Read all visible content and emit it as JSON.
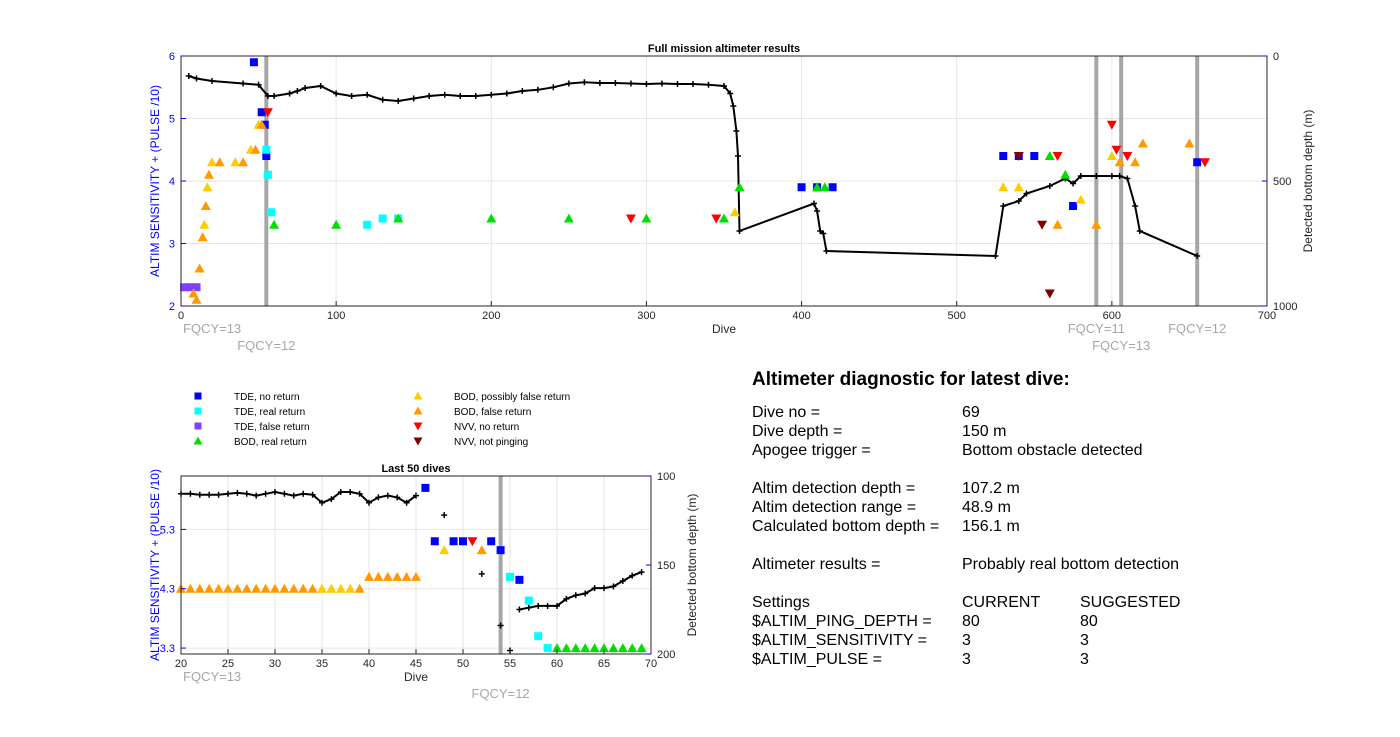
{
  "chart_data": [
    {
      "type": "scatter",
      "title": "Full mission altimeter results",
      "xlabel": "Dive",
      "ylabel_left": "ALTIM SENSITIVITY + (PULSE /10)",
      "ylabel_right": "Detected bottom depth (m)",
      "xlim": [
        0,
        700
      ],
      "ylim_left": [
        2,
        6
      ],
      "ylim_right_reversed": [
        0,
        1000
      ],
      "xticks": [
        "0",
        "100",
        "200",
        "300",
        "400",
        "500",
        "600",
        "700"
      ],
      "yticks_left": [
        "2",
        "3",
        "4",
        "5",
        "6"
      ],
      "yticks_right": [
        "0",
        "500",
        "1000"
      ],
      "grid": true,
      "freq_markers": [
        {
          "dive": 55,
          "label": "FQCY=12"
        },
        {
          "dive": 590,
          "label": "FQCY=11"
        },
        {
          "dive": 606,
          "label": "FQCY=13"
        },
        {
          "dive": 655,
          "label": "FQCY=12"
        }
      ],
      "freq_start_label": "FQCY=13",
      "bottom_depth_series": [
        [
          5,
          80
        ],
        [
          10,
          90
        ],
        [
          20,
          100
        ],
        [
          40,
          110
        ],
        [
          50,
          115
        ],
        [
          56,
          160
        ],
        [
          60,
          160
        ],
        [
          70,
          150
        ],
        [
          75,
          140
        ],
        [
          80,
          128
        ],
        [
          90,
          120
        ],
        [
          100,
          150
        ],
        [
          110,
          160
        ],
        [
          120,
          155
        ],
        [
          130,
          175
        ],
        [
          140,
          180
        ],
        [
          150,
          170
        ],
        [
          160,
          160
        ],
        [
          170,
          155
        ],
        [
          180,
          160
        ],
        [
          190,
          160
        ],
        [
          200,
          155
        ],
        [
          210,
          150
        ],
        [
          220,
          140
        ],
        [
          230,
          135
        ],
        [
          240,
          125
        ],
        [
          250,
          110
        ],
        [
          260,
          105
        ],
        [
          270,
          108
        ],
        [
          280,
          108
        ],
        [
          290,
          110
        ],
        [
          300,
          112
        ],
        [
          310,
          110
        ],
        [
          320,
          112
        ],
        [
          330,
          112
        ],
        [
          340,
          115
        ],
        [
          350,
          120
        ],
        [
          354,
          150
        ],
        [
          356,
          200
        ],
        [
          358,
          300
        ],
        [
          359,
          400
        ],
        [
          360,
          700
        ],
        [
          408,
          590
        ],
        [
          410,
          620
        ],
        [
          412,
          700
        ],
        [
          414,
          710
        ],
        [
          416,
          780
        ],
        [
          525,
          800
        ],
        [
          530,
          600
        ],
        [
          540,
          580
        ],
        [
          545,
          550
        ],
        [
          560,
          520
        ],
        [
          570,
          490
        ],
        [
          575,
          510
        ],
        [
          580,
          480
        ],
        [
          590,
          480
        ],
        [
          600,
          480
        ],
        [
          605,
          480
        ],
        [
          610,
          490
        ],
        [
          615,
          600
        ],
        [
          618,
          700
        ],
        [
          655,
          800
        ]
      ],
      "tde_no_return": [
        [
          47,
          5.9
        ],
        [
          52,
          5.1
        ],
        [
          54,
          4.9
        ],
        [
          55,
          4.4
        ],
        [
          400,
          3.9
        ],
        [
          410,
          3.9
        ],
        [
          420,
          3.9
        ],
        [
          530,
          4.4
        ],
        [
          540,
          4.4
        ],
        [
          550,
          4.4
        ],
        [
          575,
          3.6
        ],
        [
          655,
          4.3
        ]
      ],
      "tde_real_return": [
        [
          55,
          4.5
        ],
        [
          56,
          4.1
        ],
        [
          58,
          3.5
        ],
        [
          120,
          3.3
        ],
        [
          130,
          3.4
        ],
        [
          140,
          3.4
        ]
      ],
      "tde_false_return": [
        [
          2,
          2.3
        ],
        [
          6,
          2.3
        ],
        [
          10,
          2.3
        ]
      ],
      "bod_real_return": [
        [
          60,
          3.3
        ],
        [
          100,
          3.3
        ],
        [
          140,
          3.4
        ],
        [
          200,
          3.4
        ],
        [
          250,
          3.4
        ],
        [
          300,
          3.4
        ],
        [
          350,
          3.4
        ],
        [
          360,
          3.9
        ],
        [
          410,
          3.9
        ],
        [
          415,
          3.9
        ],
        [
          560,
          4.4
        ],
        [
          570,
          4.1
        ]
      ],
      "bod_possibly_false_return": [
        [
          12,
          2.6
        ],
        [
          15,
          3.3
        ],
        [
          17,
          3.9
        ],
        [
          20,
          4.3
        ],
        [
          35,
          4.3
        ],
        [
          45,
          4.5
        ],
        [
          50,
          4.9
        ],
        [
          357,
          3.5
        ],
        [
          530,
          3.9
        ],
        [
          540,
          3.9
        ],
        [
          580,
          3.7
        ],
        [
          600,
          4.4
        ]
      ],
      "bod_false_return": [
        [
          8,
          2.2
        ],
        [
          10,
          2.1
        ],
        [
          12,
          2.6
        ],
        [
          14,
          3.1
        ],
        [
          16,
          3.6
        ],
        [
          18,
          4.1
        ],
        [
          25,
          4.3
        ],
        [
          40,
          4.3
        ],
        [
          48,
          4.5
        ],
        [
          52,
          4.9
        ],
        [
          565,
          3.3
        ],
        [
          590,
          3.3
        ],
        [
          605,
          4.3
        ],
        [
          615,
          4.3
        ],
        [
          620,
          4.6
        ],
        [
          650,
          4.6
        ]
      ],
      "nvv_no_return": [
        [
          56,
          5.1
        ],
        [
          290,
          3.4
        ],
        [
          345,
          3.4
        ],
        [
          565,
          4.4
        ],
        [
          600,
          4.9
        ],
        [
          603,
          4.5
        ],
        [
          610,
          4.4
        ],
        [
          660,
          4.3
        ]
      ],
      "nvv_not_pinging": [
        [
          540,
          4.4
        ],
        [
          555,
          3.3
        ],
        [
          560,
          2.2
        ]
      ]
    },
    {
      "type": "scatter",
      "title": "Last 50 dives",
      "xlabel": "Dive",
      "ylabel_left": "ALTIM SENSITIVITY + (PULSE /10)",
      "ylabel_right": "Detected bottom depth (m)",
      "xlim": [
        20,
        70
      ],
      "ylim_left": [
        3.2,
        6.2
      ],
      "ylim_right_reversed": [
        100,
        200
      ],
      "xticks": [
        "20",
        "25",
        "30",
        "35",
        "40",
        "45",
        "50",
        "55",
        "60",
        "65",
        "70"
      ],
      "yticks_left": [
        "3.3",
        "4.3",
        "5.3"
      ],
      "yticks_right": [
        "100",
        "150",
        "200"
      ],
      "grid": true,
      "freq_markers": [
        {
          "dive": 54,
          "label": "FQCY=12"
        }
      ],
      "freq_start_label": "FQCY=13",
      "bottom_depth_series": [
        [
          20,
          110
        ],
        [
          21,
          110
        ],
        [
          22,
          110.5
        ],
        [
          23,
          110.5
        ],
        [
          24,
          110.5
        ],
        [
          25,
          110
        ],
        [
          26,
          109.5
        ],
        [
          27,
          110
        ],
        [
          28,
          111
        ],
        [
          29,
          110
        ],
        [
          30,
          109
        ],
        [
          31,
          110
        ],
        [
          32,
          111
        ],
        [
          33,
          110
        ],
        [
          34,
          110.5
        ],
        [
          35,
          115
        ],
        [
          36,
          113
        ],
        [
          37,
          109
        ],
        [
          38,
          109
        ],
        [
          39,
          110
        ],
        [
          40,
          115
        ],
        [
          41,
          112
        ],
        [
          42,
          111
        ],
        [
          43,
          112
        ],
        [
          44,
          115
        ],
        [
          45,
          111
        ]
      ],
      "bottom_depth_series_2": [
        [
          56,
          175
        ],
        [
          57,
          174
        ],
        [
          58,
          173
        ],
        [
          59,
          173
        ],
        [
          60,
          173
        ],
        [
          61,
          169
        ],
        [
          62,
          167
        ],
        [
          63,
          166
        ],
        [
          64,
          163
        ],
        [
          65,
          163
        ],
        [
          66,
          162
        ],
        [
          67,
          159
        ],
        [
          68,
          156
        ],
        [
          69,
          154
        ]
      ],
      "bottom_depth_isolated": [
        [
          48,
          122
        ],
        [
          52,
          155
        ],
        [
          54,
          184
        ],
        [
          55,
          198
        ]
      ],
      "tde_no_return": [
        [
          46,
          6.0
        ],
        [
          47,
          5.1
        ],
        [
          49,
          5.1
        ],
        [
          50,
          5.1
        ],
        [
          53,
          5.1
        ],
        [
          54,
          4.95
        ],
        [
          56,
          4.45
        ]
      ],
      "tde_real_return": [
        [
          55,
          4.5
        ],
        [
          57,
          4.1
        ],
        [
          58,
          3.5
        ],
        [
          59,
          3.3
        ]
      ],
      "bod_real_return": [
        [
          60,
          3.3
        ],
        [
          61,
          3.3
        ],
        [
          62,
          3.3
        ],
        [
          63,
          3.3
        ],
        [
          64,
          3.3
        ],
        [
          65,
          3.3
        ],
        [
          66,
          3.3
        ],
        [
          67,
          3.3
        ],
        [
          68,
          3.3
        ],
        [
          69,
          3.3
        ]
      ],
      "bod_possibly_false_return": [
        [
          35,
          4.3
        ],
        [
          36,
          4.3
        ],
        [
          37,
          4.3
        ],
        [
          38,
          4.3
        ],
        [
          48,
          4.95
        ]
      ],
      "bod_false_return": [
        [
          20,
          4.3
        ],
        [
          21,
          4.3
        ],
        [
          22,
          4.3
        ],
        [
          23,
          4.3
        ],
        [
          24,
          4.3
        ],
        [
          25,
          4.3
        ],
        [
          26,
          4.3
        ],
        [
          27,
          4.3
        ],
        [
          28,
          4.3
        ],
        [
          29,
          4.3
        ],
        [
          30,
          4.3
        ],
        [
          31,
          4.3
        ],
        [
          32,
          4.3
        ],
        [
          33,
          4.3
        ],
        [
          34,
          4.3
        ],
        [
          39,
          4.3
        ],
        [
          40,
          4.5
        ],
        [
          41,
          4.5
        ],
        [
          42,
          4.5
        ],
        [
          43,
          4.5
        ],
        [
          44,
          4.5
        ],
        [
          45,
          4.5
        ],
        [
          52,
          4.95
        ]
      ],
      "nvv_no_return": [
        [
          51,
          5.1
        ]
      ]
    }
  ],
  "legend": {
    "items": [
      {
        "label": "TDE, no return",
        "color": "#0000ff",
        "shape": "square"
      },
      {
        "label": "TDE, real return",
        "color": "#00ffff",
        "shape": "square"
      },
      {
        "label": "TDE, false return",
        "color": "#8040ff",
        "shape": "square"
      },
      {
        "label": "BOD, real return",
        "color": "#00e000",
        "shape": "triangle-up"
      },
      {
        "label": "BOD, possibly false return",
        "color": "#ffcc00",
        "shape": "triangle-up"
      },
      {
        "label": "BOD, false return",
        "color": "#ff9900",
        "shape": "triangle-up"
      },
      {
        "label": "NVV, no return",
        "color": "#ff0000",
        "shape": "triangle-down"
      },
      {
        "label": "NVV, not pinging",
        "color": "#800000",
        "shape": "triangle-down"
      }
    ]
  },
  "diagnostic": {
    "title": "Altimeter diagnostic for latest dive:",
    "dive_no_label": "Dive no =",
    "dive_no": "69",
    "dive_depth_label": "Dive depth =",
    "dive_depth": "150 m",
    "apogee_label": "Apogee trigger =",
    "apogee": "Bottom obstacle detected",
    "altim_det_depth_label": "Altim detection depth =",
    "altim_det_depth": "107.2 m",
    "altim_det_range_label": "Altim detection range =",
    "altim_det_range": "48.9 m",
    "calc_bottom_label": "Calculated bottom depth =",
    "calc_bottom": "156.1 m",
    "results_label": "Altimeter results =",
    "results": "Probably real bottom detection",
    "settings_label": "Settings",
    "current_label": "CURRENT",
    "suggested_label": "SUGGESTED",
    "settings": [
      {
        "name": "$ALTIM_PING_DEPTH =",
        "current": "80",
        "suggested": "80"
      },
      {
        "name": "$ALTIM_SENSITIVITY =",
        "current": "3",
        "suggested": "3"
      },
      {
        "name": "$ALTIM_PULSE =",
        "current": "3",
        "suggested": "3"
      }
    ]
  }
}
